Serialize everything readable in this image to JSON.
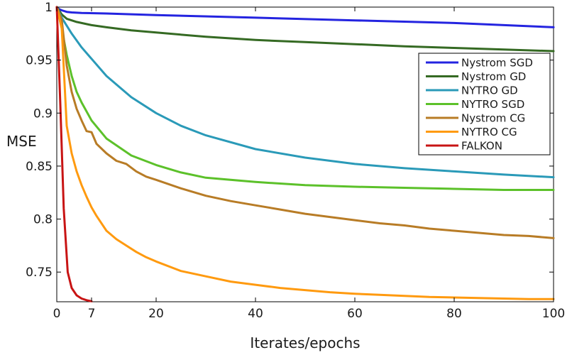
{
  "chart_data": {
    "type": "line",
    "title": "",
    "xlabel": "Iterates/epochs",
    "ylabel": "MSE",
    "xlim": [
      0,
      100
    ],
    "ylim": [
      0.722,
      1.0
    ],
    "xticks": [
      0,
      7,
      20,
      40,
      60,
      80,
      100
    ],
    "xtick_labels": [
      "0",
      "7",
      "20",
      "40",
      "60",
      "80",
      "100"
    ],
    "yticks": [
      0.75,
      0.8,
      0.85,
      0.9,
      0.95,
      1.0
    ],
    "ytick_labels": [
      "0.75",
      "0.8",
      "0.85",
      "0.9",
      "0.95",
      "1"
    ],
    "grid": false,
    "legend_position": "top-right",
    "series": [
      {
        "name": "Nystrom SGD",
        "color": "#2424e0",
        "x": [
          0,
          0.5,
          1,
          2,
          3,
          5,
          10,
          20,
          40,
          60,
          80,
          100
        ],
        "y": [
          1.0,
          0.998,
          0.997,
          0.9955,
          0.995,
          0.9945,
          0.994,
          0.9925,
          0.99,
          0.9875,
          0.985,
          0.981
        ]
      },
      {
        "name": "Nystrom GD",
        "color": "#356a23",
        "x": [
          0,
          1,
          2,
          4,
          7,
          10,
          15,
          20,
          30,
          40,
          50,
          60,
          70,
          80,
          90,
          100
        ],
        "y": [
          1.0,
          0.993,
          0.989,
          0.986,
          0.983,
          0.981,
          0.978,
          0.976,
          0.972,
          0.969,
          0.967,
          0.965,
          0.963,
          0.9615,
          0.96,
          0.9585
        ]
      },
      {
        "name": "NYTRO GD",
        "color": "#2a9ab8",
        "x": [
          0,
          1,
          3,
          5,
          10,
          15,
          20,
          25,
          30,
          40,
          50,
          60,
          70,
          80,
          90,
          100
        ],
        "y": [
          1.0,
          0.99,
          0.975,
          0.962,
          0.935,
          0.915,
          0.9,
          0.888,
          0.879,
          0.866,
          0.858,
          0.852,
          0.848,
          0.845,
          0.842,
          0.8395
        ]
      },
      {
        "name": "NYTRO SGD",
        "color": "#5cc12a",
        "x": [
          0,
          1,
          2,
          3,
          4,
          5,
          7,
          10,
          15,
          20,
          25,
          30,
          40,
          50,
          60,
          70,
          80,
          90,
          100
        ],
        "y": [
          1.0,
          0.98,
          0.955,
          0.935,
          0.92,
          0.91,
          0.893,
          0.876,
          0.86,
          0.851,
          0.844,
          0.839,
          0.835,
          0.832,
          0.8305,
          0.8295,
          0.8285,
          0.8275,
          0.8275
        ]
      },
      {
        "name": "Nystrom CG",
        "color": "#b87c26",
        "x": [
          0,
          1,
          2,
          3,
          4,
          5,
          6,
          7,
          8,
          10,
          12,
          14,
          16,
          18,
          20,
          25,
          30,
          35,
          40,
          45,
          50,
          55,
          60,
          65,
          70,
          75,
          80,
          85,
          90,
          95,
          100
        ],
        "y": [
          1.0,
          0.988,
          0.945,
          0.92,
          0.904,
          0.893,
          0.883,
          0.882,
          0.871,
          0.862,
          0.855,
          0.852,
          0.845,
          0.84,
          0.837,
          0.829,
          0.822,
          0.817,
          0.813,
          0.809,
          0.805,
          0.802,
          0.799,
          0.796,
          0.794,
          0.791,
          0.789,
          0.787,
          0.785,
          0.784,
          0.782
        ]
      },
      {
        "name": "NYTRO CG",
        "color": "#ff9a0f",
        "x": [
          0,
          1,
          2,
          3,
          4,
          5,
          6,
          7,
          8,
          10,
          12,
          14,
          16,
          18,
          20,
          25,
          30,
          35,
          40,
          45,
          50,
          55,
          60,
          65,
          70,
          75,
          80,
          85,
          90,
          95,
          100
        ],
        "y": [
          1.0,
          0.98,
          0.888,
          0.862,
          0.845,
          0.832,
          0.821,
          0.811,
          0.803,
          0.789,
          0.781,
          0.775,
          0.769,
          0.764,
          0.76,
          0.751,
          0.746,
          0.741,
          0.738,
          0.735,
          0.733,
          0.731,
          0.7295,
          0.7285,
          0.7275,
          0.7265,
          0.726,
          0.7255,
          0.725,
          0.7245,
          0.7245
        ]
      },
      {
        "name": "FALKON",
        "color": "#c81414",
        "x": [
          0,
          0.7,
          1.4,
          2.2,
          3,
          4,
          5,
          6,
          7
        ],
        "y": [
          1.0,
          0.91,
          0.81,
          0.75,
          0.735,
          0.728,
          0.725,
          0.7235,
          0.7225
        ]
      }
    ]
  }
}
